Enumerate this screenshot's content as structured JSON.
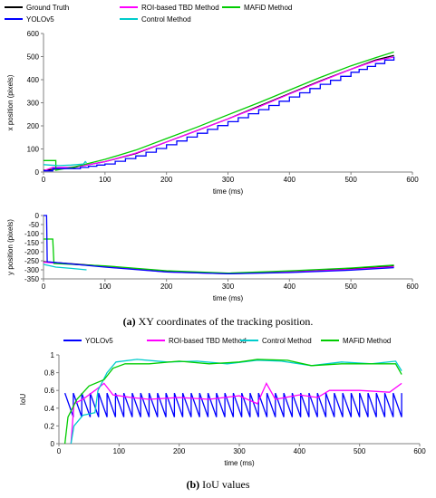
{
  "chart_data": [
    {
      "type": "line",
      "xlabel": "time (ms)",
      "ylabel": "x position (pixels)",
      "xlim": [
        0,
        600
      ],
      "ylim": [
        0,
        600
      ],
      "x_ticks": [
        0,
        100,
        200,
        300,
        400,
        500,
        600
      ],
      "y_ticks": [
        0,
        100,
        200,
        300,
        400,
        500,
        600
      ],
      "legend": "top",
      "series": [
        {
          "name": "Ground Truth",
          "color": "#000000",
          "points": [
            [
              0,
              8
            ],
            [
              50,
              20
            ],
            [
              100,
              45
            ],
            [
              150,
              80
            ],
            [
              200,
              130
            ],
            [
              250,
              180
            ],
            [
              300,
              230
            ],
            [
              350,
              285
            ],
            [
              400,
              340
            ],
            [
              450,
              395
            ],
            [
              500,
              445
            ],
            [
              540,
              485
            ],
            [
              570,
              505
            ]
          ]
        },
        {
          "name": "ROI-based TBD Method",
          "color": "#ff00ff",
          "points": [
            [
              0,
              5
            ],
            [
              15,
              20
            ],
            [
              40,
              20
            ],
            [
              60,
              25
            ],
            [
              100,
              45
            ],
            [
              150,
              82
            ],
            [
              200,
              130
            ],
            [
              250,
              180
            ],
            [
              300,
              230
            ],
            [
              350,
              282
            ],
            [
              400,
              338
            ],
            [
              450,
              392
            ],
            [
              500,
              445
            ],
            [
              540,
              482
            ],
            [
              570,
              498
            ]
          ]
        },
        {
          "name": "MAFiD Method",
          "color": "#00cc00",
          "points": [
            [
              0,
              50
            ],
            [
              20,
              50
            ],
            [
              20,
              8
            ],
            [
              50,
              22
            ],
            [
              100,
              55
            ],
            [
              150,
              95
            ],
            [
              200,
              145
            ],
            [
              250,
              195
            ],
            [
              300,
              248
            ],
            [
              350,
              300
            ],
            [
              400,
              355
            ],
            [
              450,
              410
            ],
            [
              500,
              460
            ],
            [
              540,
              495
            ],
            [
              570,
              520
            ]
          ]
        },
        {
          "name": "YOLOv5",
          "color": "#0000ff",
          "step": true,
          "points": [
            [
              0,
              5
            ],
            [
              15,
              15
            ],
            [
              40,
              15
            ],
            [
              60,
              20
            ],
            [
              100,
              35
            ],
            [
              150,
              70
            ],
            [
              200,
              118
            ],
            [
              250,
              168
            ],
            [
              300,
              218
            ],
            [
              350,
              270
            ],
            [
              400,
              325
            ],
            [
              450,
              380
            ],
            [
              500,
              432
            ],
            [
              540,
              470
            ],
            [
              570,
              500
            ]
          ]
        },
        {
          "name": "Control Method",
          "color": "#00cccc",
          "points": [
            [
              0,
              32
            ],
            [
              10,
              30
            ],
            [
              25,
              28
            ],
            [
              45,
              30
            ],
            [
              65,
              35
            ],
            [
              68,
              45
            ],
            [
              70,
              40
            ]
          ]
        }
      ]
    },
    {
      "type": "line",
      "xlabel": "time (ms)",
      "ylabel": "y position (pixels)",
      "xlim": [
        0,
        600
      ],
      "ylim": [
        -350,
        0
      ],
      "x_ticks": [
        0,
        100,
        200,
        300,
        400,
        500,
        600
      ],
      "y_ticks": [
        0,
        -50,
        -100,
        -150,
        -200,
        -250,
        -300,
        -350
      ],
      "series": [
        {
          "name": "Ground Truth",
          "color": "#000000",
          "points": [
            [
              0,
              -255
            ],
            [
              100,
              -280
            ],
            [
              200,
              -310
            ],
            [
              300,
              -320
            ],
            [
              400,
              -310
            ],
            [
              500,
              -295
            ],
            [
              570,
              -280
            ]
          ]
        },
        {
          "name": "ROI-based TBD Method",
          "color": "#ff00ff",
          "points": [
            [
              0,
              -258
            ],
            [
              100,
              -282
            ],
            [
              200,
              -312
            ],
            [
              300,
              -322
            ],
            [
              400,
              -312
            ],
            [
              500,
              -298
            ],
            [
              570,
              -283
            ]
          ]
        },
        {
          "name": "MAFiD Method",
          "color": "#00cc00",
          "points": [
            [
              0,
              -130
            ],
            [
              15,
              -130
            ],
            [
              17,
              -265
            ],
            [
              100,
              -278
            ],
            [
              200,
              -305
            ],
            [
              300,
              -318
            ],
            [
              400,
              -306
            ],
            [
              500,
              -290
            ],
            [
              570,
              -274
            ]
          ]
        },
        {
          "name": "YOLOv5",
          "color": "#0000ff",
          "points": [
            [
              0,
              0
            ],
            [
              5,
              0
            ],
            [
              6,
              -255
            ],
            [
              100,
              -285
            ],
            [
              200,
              -312
            ],
            [
              300,
              -322
            ],
            [
              400,
              -315
            ],
            [
              500,
              -302
            ],
            [
              570,
              -288
            ]
          ]
        },
        {
          "name": "Control Method",
          "color": "#00cccc",
          "points": [
            [
              0,
              -270
            ],
            [
              20,
              -285
            ],
            [
              45,
              -292
            ],
            [
              70,
              -300
            ]
          ]
        }
      ]
    },
    {
      "type": "line",
      "xlabel": "time (ms)",
      "ylabel": "IoU",
      "xlim": [
        0,
        600
      ],
      "ylim": [
        0,
        1
      ],
      "x_ticks": [
        0,
        100,
        200,
        300,
        400,
        500,
        600
      ],
      "y_ticks": [
        0,
        0.2,
        0.4,
        0.6,
        0.8,
        1
      ],
      "legend": "top",
      "series": [
        {
          "name": "YOLOv5",
          "color": "#0000ff",
          "sawtooth": true,
          "x_start": 10,
          "x_end": 570,
          "period": 14,
          "high": 0.57,
          "low": 0.3
        },
        {
          "name": "ROI-based TBD Method",
          "color": "#ff00ff",
          "points": [
            [
              20,
              0
            ],
            [
              25,
              0.45
            ],
            [
              40,
              0.5
            ],
            [
              60,
              0.6
            ],
            [
              75,
              0.68
            ],
            [
              90,
              0.55
            ],
            [
              120,
              0.52
            ],
            [
              150,
              0.5
            ],
            [
              200,
              0.52
            ],
            [
              250,
              0.5
            ],
            [
              300,
              0.54
            ],
            [
              330,
              0.45
            ],
            [
              345,
              0.68
            ],
            [
              360,
              0.5
            ],
            [
              400,
              0.55
            ],
            [
              430,
              0.52
            ],
            [
              450,
              0.6
            ],
            [
              500,
              0.6
            ],
            [
              550,
              0.58
            ],
            [
              570,
              0.68
            ]
          ]
        },
        {
          "name": "Control Method",
          "color": "#00cccc",
          "points": [
            [
              20,
              0
            ],
            [
              25,
              0.2
            ],
            [
              40,
              0.32
            ],
            [
              60,
              0.35
            ],
            [
              65,
              0.6
            ],
            [
              80,
              0.8
            ],
            [
              95,
              0.92
            ],
            [
              130,
              0.95
            ],
            [
              180,
              0.92
            ],
            [
              230,
              0.93
            ],
            [
              280,
              0.9
            ],
            [
              330,
              0.94
            ],
            [
              370,
              0.93
            ],
            [
              420,
              0.88
            ],
            [
              470,
              0.92
            ],
            [
              520,
              0.9
            ],
            [
              560,
              0.93
            ],
            [
              570,
              0.82
            ]
          ]
        },
        {
          "name": "MAFiD Method",
          "color": "#00cc00",
          "points": [
            [
              10,
              0
            ],
            [
              15,
              0.3
            ],
            [
              30,
              0.5
            ],
            [
              50,
              0.65
            ],
            [
              75,
              0.72
            ],
            [
              90,
              0.85
            ],
            [
              110,
              0.9
            ],
            [
              150,
              0.9
            ],
            [
              200,
              0.93
            ],
            [
              250,
              0.9
            ],
            [
              300,
              0.92
            ],
            [
              330,
              0.95
            ],
            [
              380,
              0.94
            ],
            [
              420,
              0.88
            ],
            [
              470,
              0.9
            ],
            [
              520,
              0.9
            ],
            [
              560,
              0.9
            ],
            [
              570,
              0.78
            ]
          ]
        }
      ]
    }
  ],
  "captions": {
    "a_label": "(a)",
    "a_text": " XY coordinates of the tracking position.",
    "b_label": "(b)",
    "b_text": " IoU values"
  }
}
